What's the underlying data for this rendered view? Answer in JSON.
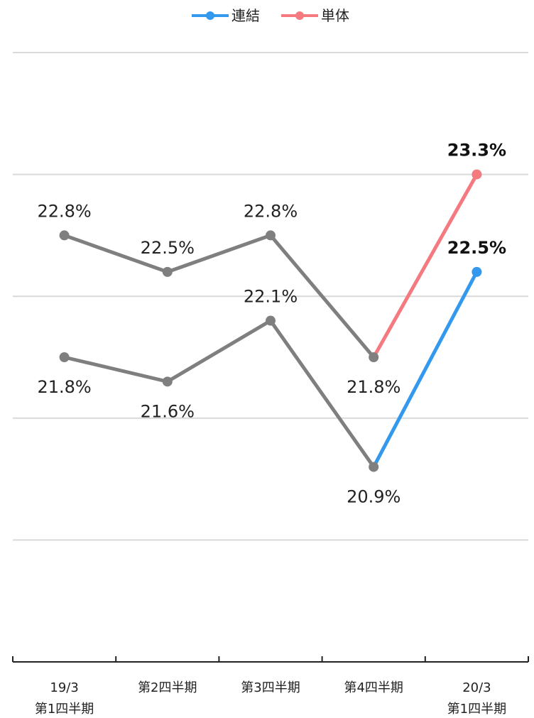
{
  "chart_data": {
    "type": "line",
    "title": "",
    "xlabel": "",
    "ylabel": "",
    "categories": [
      [
        "19/3",
        "第1四半期"
      ],
      [
        "第2四半期"
      ],
      [
        "第3四半期"
      ],
      [
        "第4四半期"
      ],
      [
        "20/3",
        "第1四半期"
      ]
    ],
    "ylim": [
      19.3,
      24.3
    ],
    "grid": true,
    "legend": "top-center",
    "series": [
      {
        "name": "連結",
        "color": "#3399ee",
        "history_color": "#7f7f7f",
        "values": [
          21.8,
          21.6,
          22.1,
          20.9,
          22.5
        ],
        "labels": [
          "21.8%",
          "21.6%",
          "22.1%",
          "20.9%",
          "22.5%"
        ],
        "label_side": [
          "below",
          "below",
          "above",
          "below",
          "above"
        ],
        "highlight_last": true
      },
      {
        "name": "単体",
        "color": "#f47a80",
        "history_color": "#7f7f7f",
        "values": [
          22.8,
          22.5,
          22.8,
          21.8,
          23.3
        ],
        "labels": [
          "22.8%",
          "22.5%",
          "22.8%",
          "21.8%",
          "23.3%"
        ],
        "label_side": [
          "above",
          "above",
          "above",
          "below",
          "above"
        ],
        "highlight_last": true
      }
    ]
  }
}
